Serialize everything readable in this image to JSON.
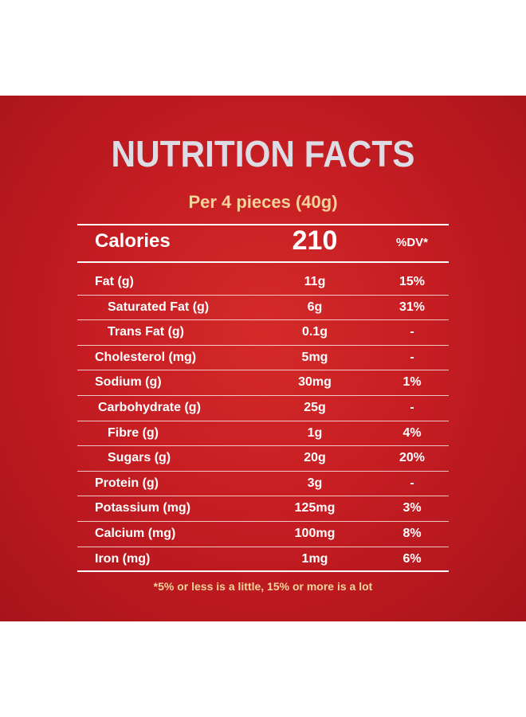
{
  "title": "NUTRITION FACTS",
  "serving": "Per 4 pieces (40g)",
  "calories": {
    "label": "Calories",
    "value": "210",
    "dv_header": "%DV*"
  },
  "nutrients": [
    {
      "label": "Fat (g)",
      "amount": "11g",
      "dv": "15%"
    },
    {
      "label": "Saturated Fat (g)",
      "amount": "6g",
      "dv": "31%"
    },
    {
      "label": "Trans Fat (g)",
      "amount": "0.1g",
      "dv": "-"
    },
    {
      "label": "Cholesterol (mg)",
      "amount": "5mg",
      "dv": "-"
    },
    {
      "label": "Sodium (g)",
      "amount": "30mg",
      "dv": "1%"
    },
    {
      "label": "Carbohydrate (g)",
      "amount": "25g",
      "dv": "-"
    },
    {
      "label": "Fibre (g)",
      "amount": "1g",
      "dv": "4%"
    },
    {
      "label": "Sugars (g)",
      "amount": "20g",
      "dv": "20%"
    },
    {
      "label": "Protein (g)",
      "amount": "3g",
      "dv": "-"
    },
    {
      "label": "Potassium (mg)",
      "amount": "125mg",
      "dv": "3%"
    },
    {
      "label": "Calcium (mg)",
      "amount": "100mg",
      "dv": "8%"
    },
    {
      "label": "Iron (mg)",
      "amount": "1mg",
      "dv": "6%"
    }
  ],
  "footnote": "*5% or less is a little, 15% or more is a lot",
  "colors": {
    "background": "#c51d22",
    "title": "#dcdce4",
    "accent": "#f2d49a",
    "text": "#ffffff"
  }
}
